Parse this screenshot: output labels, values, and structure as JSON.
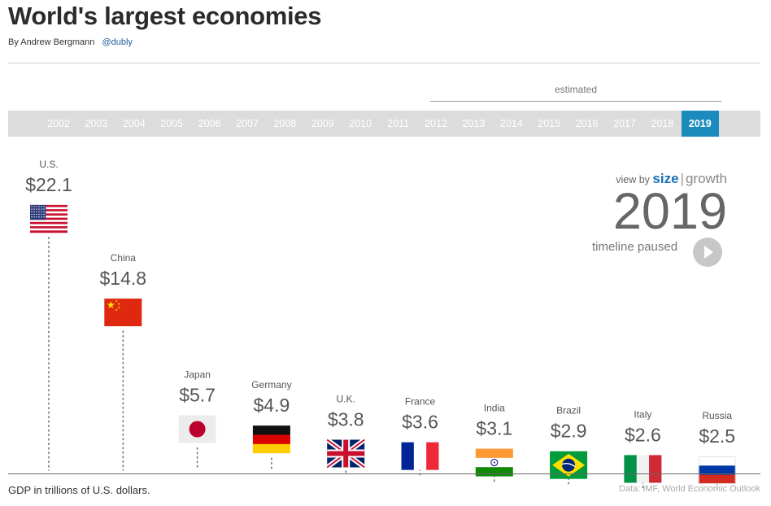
{
  "header": {
    "title": "World's largest economies",
    "byline": "By Andrew Bergmann",
    "handle": "@dubly"
  },
  "timeline": {
    "estimated_label": "estimated",
    "years": [
      "2002",
      "2003",
      "2004",
      "2005",
      "2006",
      "2007",
      "2008",
      "2009",
      "2010",
      "2011",
      "2012",
      "2013",
      "2014",
      "2015",
      "2016",
      "2017",
      "2018",
      "2019"
    ],
    "active_year": "2019"
  },
  "controls": {
    "view_by_label": "view by",
    "size_label": "size",
    "separator": "|",
    "growth_label": "growth",
    "current_year": "2019",
    "status": "timeline paused",
    "play_icon": "play-icon"
  },
  "footer": {
    "note": "GDP in trillions of U.S. dollars.",
    "source": "Data: IMF, World Economic Outlook"
  },
  "colors": {
    "accent": "#1b8bbd",
    "timeline_bg": "#dcdcdc",
    "size_link": "#1b6fb5"
  },
  "chart_data": {
    "type": "bar",
    "year": "2019",
    "unit": "GDP in trillions of U.S. dollars",
    "categories": [
      "U.S.",
      "China",
      "Japan",
      "Germany",
      "U.K.",
      "France",
      "India",
      "Brazil",
      "Italy",
      "Russia"
    ],
    "values": [
      22.1,
      14.8,
      5.7,
      4.9,
      3.8,
      3.6,
      3.1,
      2.9,
      2.6,
      2.5
    ],
    "value_labels": [
      "$22.1",
      "$14.8",
      "$5.7",
      "$4.9",
      "$3.8",
      "$3.6",
      "$3.1",
      "$2.9",
      "$2.6",
      "$2.5"
    ],
    "flags": [
      "us-flag",
      "china-flag",
      "japan-flag",
      "germany-flag",
      "uk-flag",
      "france-flag",
      "india-flag",
      "brazil-flag",
      "italy-flag",
      "russia-flag"
    ],
    "xlabel": "",
    "ylabel": ""
  }
}
